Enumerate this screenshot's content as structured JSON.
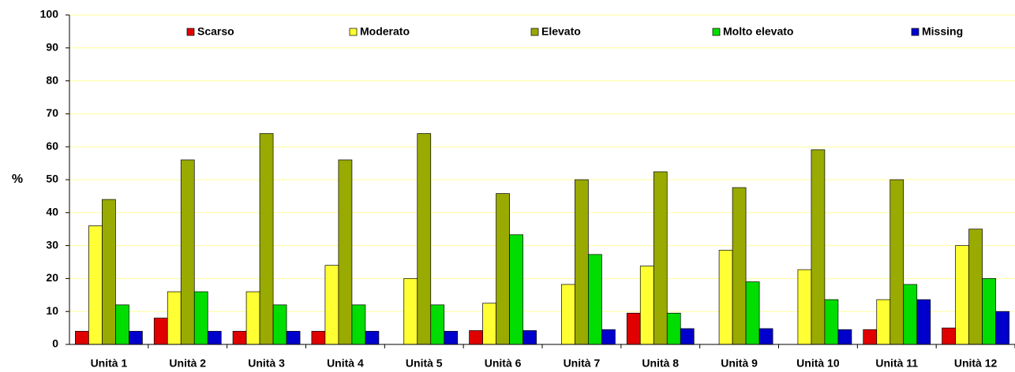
{
  "chart_data": {
    "type": "bar",
    "y_label": "%",
    "categories": [
      "Unità 1",
      "Unità 2",
      "Unità 3",
      "Unità 4",
      "Unità 5",
      "Unità 6",
      "Unità 7",
      "Unità 8",
      "Unità 9",
      "Unità 10",
      "Unità 11",
      "Unità 12"
    ],
    "series": [
      {
        "name": "Scarso",
        "color": "#e00000",
        "values": [
          4,
          8,
          4,
          4,
          0,
          4.2,
          0,
          9.5,
          0,
          0,
          4.5,
          5
        ]
      },
      {
        "name": "Moderato",
        "color": "#ffff33",
        "values": [
          36,
          16,
          16,
          24,
          20,
          12.5,
          18.2,
          23.8,
          28.6,
          22.7,
          13.6,
          30
        ]
      },
      {
        "name": "Elevato",
        "color": "#99aa00",
        "values": [
          44,
          56,
          64,
          56,
          64,
          45.8,
          50,
          52.4,
          47.6,
          59.1,
          50,
          35
        ]
      },
      {
        "name": "Molto elevato",
        "color": "#00dd00",
        "values": [
          12,
          16,
          12,
          12,
          12,
          33.3,
          27.3,
          9.5,
          19,
          13.6,
          18.2,
          20
        ]
      },
      {
        "name": "Missing",
        "color": "#0000cc",
        "values": [
          4,
          4,
          4,
          4,
          4,
          4.2,
          4.5,
          4.8,
          4.8,
          4.5,
          13.6,
          10
        ]
      }
    ],
    "ylim": [
      0,
      100
    ],
    "yticks": [
      0,
      10,
      20,
      30,
      40,
      50,
      60,
      70,
      80,
      90,
      100
    ],
    "grid": true
  }
}
